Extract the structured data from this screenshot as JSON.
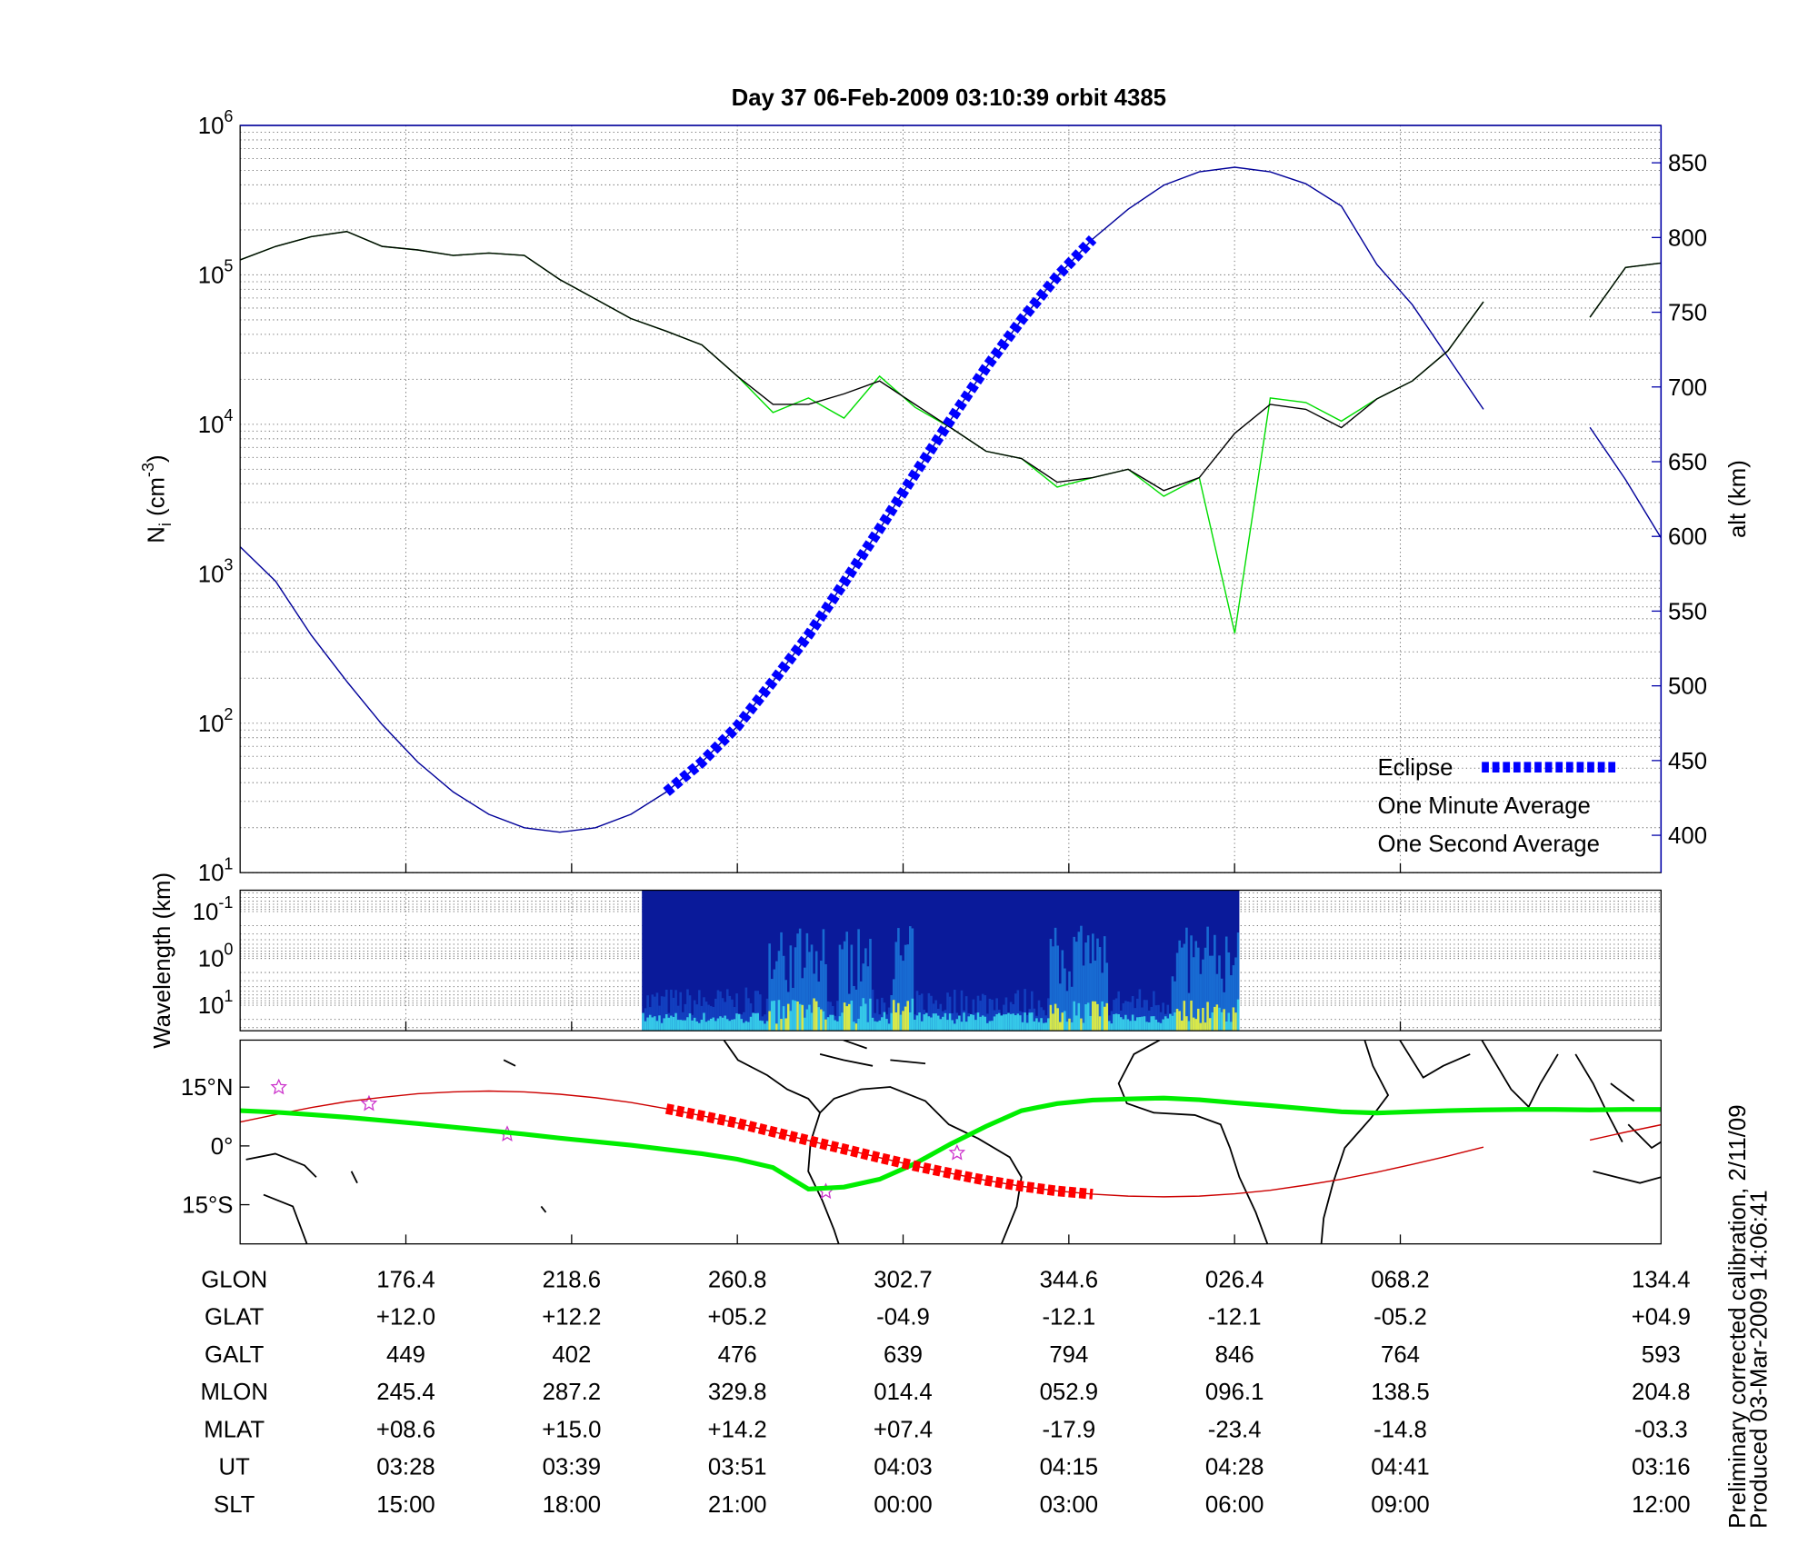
{
  "chart_data": [
    {
      "type": "line",
      "title": "Day 37  06-Feb-2009 03:10:39   orbit 4385",
      "ylabel": [
        "N",
        "i",
        " (cm",
        "-3",
        ")"
      ],
      "y2label": "alt (km)",
      "log_y": true,
      "ylim": [
        10,
        1000000
      ],
      "yticks": [
        {
          "value": 10,
          "label": "10",
          "exponent": "1"
        },
        {
          "value": 100,
          "label": "10",
          "exponent": "2"
        },
        {
          "value": 1000,
          "label": "10",
          "exponent": "3"
        },
        {
          "value": 10000,
          "label": "10",
          "exponent": "4"
        },
        {
          "value": 100000,
          "label": "10",
          "exponent": "5"
        },
        {
          "value": 1000000,
          "label": "10",
          "exponent": "6"
        }
      ],
      "y2lim": [
        375,
        875
      ],
      "y2ticks": [
        400,
        450,
        500,
        550,
        600,
        650,
        700,
        750,
        800,
        850
      ],
      "grid": true,
      "legend": "lower right",
      "series": [
        {
          "name": "Eclipse",
          "color": "#0000ff",
          "axis": "y2",
          "style": "thick-dashed",
          "values": [
            null,
            null,
            null,
            null,
            null,
            null,
            null,
            null,
            null,
            null,
            null,
            null,
            429,
            449,
            473,
            503,
            534,
            569,
            605,
            642,
            678,
            713,
            745,
            774,
            799,
            null,
            null,
            null,
            null,
            null,
            null,
            null,
            null,
            null,
            null,
            null,
            null,
            null,
            null,
            null,
            null
          ]
        },
        {
          "name": "One Minute Average",
          "color": "#000000",
          "style": "thin",
          "values": [
            126000,
            155000,
            180000,
            195000,
            155000,
            147000,
            135000,
            140000,
            135000,
            93000,
            69000,
            51000,
            42000,
            34000,
            21000,
            13600,
            13600,
            16000,
            19500,
            13600,
            9500,
            6600,
            5900,
            4100,
            4400,
            5000,
            3600,
            4400,
            8700,
            13600,
            12600,
            9500,
            14800,
            19500,
            31000,
            66000,
            null,
            null,
            52000,
            112000,
            120000
          ]
        },
        {
          "name": "One Second Average",
          "color": "#00dd00",
          "style": "thin",
          "values": [
            126000,
            155000,
            180000,
            195000,
            155000,
            147000,
            135000,
            140000,
            135000,
            93000,
            69000,
            51000,
            42000,
            34000,
            21000,
            12000,
            15000,
            11000,
            21000,
            13000,
            9500,
            6600,
            5900,
            3800,
            4400,
            5000,
            3300,
            4400,
            400,
            15000,
            14000,
            10500,
            14800,
            19500,
            31000,
            66000,
            null,
            null,
            52000,
            112000,
            120000
          ]
        },
        {
          "color": "#000099",
          "axis": "y2",
          "style": "thin",
          "values": [
            593,
            570,
            534,
            503,
            474,
            449,
            429,
            414,
            405,
            402,
            405,
            414,
            429,
            449,
            473,
            503,
            534,
            569,
            605,
            642,
            678,
            713,
            745,
            774,
            799,
            819,
            835,
            844,
            847,
            844,
            836,
            821,
            782,
            755,
            720,
            685,
            null,
            null,
            673,
            638,
            599
          ]
        }
      ]
    },
    {
      "type": "spectrogram",
      "ylabel": "Wavelength (km)",
      "log_y": true,
      "ylim": [
        35,
        0.035
      ],
      "yticks": [
        {
          "value": 0.1,
          "label": "10",
          "exponent": "-1"
        },
        {
          "value": 1,
          "label": "10",
          "exponent": "0"
        },
        {
          "value": 10,
          "label": "10",
          "exponent": "1"
        }
      ],
      "grid": true
    },
    {
      "type": "map",
      "ylim": [
        -25,
        27
      ],
      "yticks": [
        {
          "value": 15,
          "label": "15°N"
        },
        {
          "value": 0,
          "label": "0°"
        },
        {
          "value": -15,
          "label": "15°S"
        }
      ],
      "series": [
        {
          "color": "#cc0000",
          "style": "thin",
          "values": [
            6.1,
            8.0,
            9.8,
            11.3,
            12.4,
            13.3,
            13.8,
            14.0,
            13.8,
            13.2,
            12.3,
            11.1,
            9.5,
            7.7,
            5.8,
            3.6,
            1.4,
            -0.8,
            -3.0,
            -5.1,
            -7.0,
            -8.8,
            -10.3,
            -11.5,
            -12.3,
            -12.8,
            -13.0,
            -12.8,
            -12.2,
            -11.3,
            -10.0,
            -8.5,
            -6.7,
            -4.7,
            -2.6,
            -0.3,
            null,
            null,
            1.5,
            3.5,
            5.4
          ]
        },
        {
          "color": "#00ee00",
          "style": "thick",
          "values": [
            9.0,
            8.6,
            8.0,
            7.3,
            6.5,
            5.7,
            4.8,
            3.9,
            3.0,
            2.0,
            1.1,
            0.2,
            -0.9,
            -2.0,
            -3.4,
            -5.5,
            -11.0,
            -10.5,
            -8.5,
            -4.5,
            0.5,
            5.0,
            9.0,
            10.8,
            11.7,
            12.0,
            12.2,
            11.8,
            11.0,
            10.3,
            9.5,
            8.7,
            8.4,
            8.7,
            9.0,
            9.2,
            9.3,
            9.3,
            9.2,
            9.3,
            9.3
          ]
        },
        {
          "color": "#ff0000",
          "style": "thick-dashed",
          "values": [
            null,
            null,
            null,
            null,
            null,
            null,
            null,
            null,
            null,
            null,
            null,
            null,
            9.5,
            7.7,
            5.8,
            3.6,
            1.4,
            -0.8,
            -3.0,
            -5.1,
            -7.0,
            -8.8,
            -10.3,
            -11.5,
            -12.3,
            null,
            null,
            null,
            null,
            null,
            null,
            null,
            null,
            null,
            null,
            null,
            null,
            null,
            null,
            null,
            null
          ]
        }
      ]
    }
  ],
  "table": {
    "rows": [
      {
        "label": "GLON",
        "values": [
          "176.4",
          "218.6",
          "260.8",
          "302.7",
          "344.6",
          "026.4",
          "068.2",
          "134.4"
        ]
      },
      {
        "label": "GLAT",
        "values": [
          "+12.0",
          "+12.2",
          "+05.2",
          "-04.9",
          "-12.1",
          "-12.1",
          "-05.2",
          "+04.9"
        ]
      },
      {
        "label": "GALT",
        "values": [
          "449",
          "402",
          "476",
          "639",
          "794",
          "846",
          "764",
          "593"
        ]
      },
      {
        "label": "MLON",
        "values": [
          "245.4",
          "287.2",
          "329.8",
          "014.4",
          "052.9",
          "096.1",
          "138.5",
          "204.8"
        ]
      },
      {
        "label": "MLAT",
        "values": [
          "+08.6",
          "+15.0",
          "+14.2",
          "+07.4",
          "-17.9",
          "-23.4",
          "-14.8",
          "-03.3"
        ]
      },
      {
        "label": "UT",
        "values": [
          "03:28",
          "03:39",
          "03:51",
          "04:03",
          "04:15",
          "04:28",
          "04:41",
          "03:16"
        ]
      },
      {
        "label": "SLT",
        "values": [
          "15:00",
          "18:00",
          "21:00",
          "00:00",
          "03:00",
          "06:00",
          "09:00",
          "12:00"
        ]
      }
    ]
  },
  "footnotes": [
    "Preliminary corrected calibration, 2/11/09",
    "Produced 03-Mar-2009 14:06:41"
  ]
}
